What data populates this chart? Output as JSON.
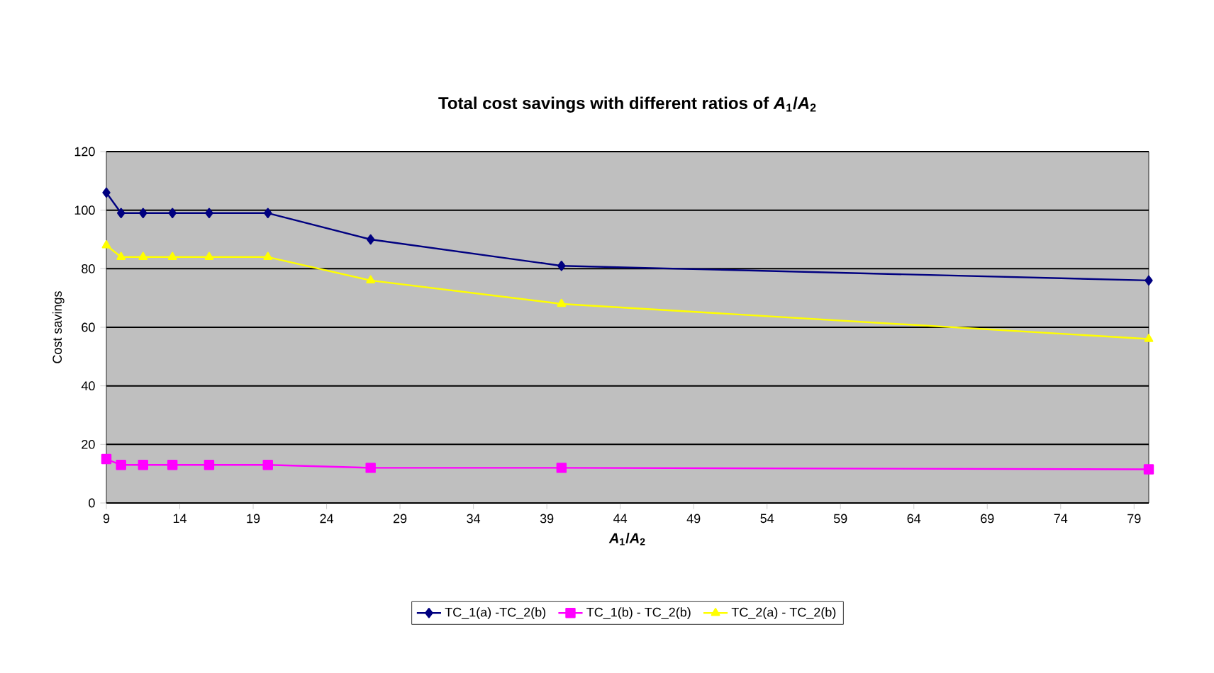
{
  "chart_data": {
    "type": "line",
    "title": "Total cost savings with different ratios of *A*$_{1}$/*A*$_{2}$",
    "xlabel": "*A*$_{1}$/*A*$_{2}$",
    "ylabel": "Cost savings",
    "x": [
      9,
      10,
      11.5,
      13.5,
      16,
      20,
      27,
      40,
      80
    ],
    "series": [
      {
        "name": "TC_1(a) -TC_2(b)",
        "color": "#000080",
        "marker": "diamond",
        "values": [
          106,
          99,
          99,
          99,
          99,
          99,
          90,
          81,
          76
        ]
      },
      {
        "name": "TC_1(b) - TC_2(b)",
        "color": "#ff00ff",
        "marker": "square",
        "values": [
          15,
          13,
          13,
          13,
          13,
          13,
          12,
          12,
          11.5
        ]
      },
      {
        "name": "TC_2(a) - TC_2(b)",
        "color": "#ffff00",
        "marker": "triangle",
        "values": [
          88,
          84,
          84,
          84,
          84,
          84,
          76,
          68,
          56
        ]
      }
    ],
    "xlim": [
      9,
      80
    ],
    "xticks": [
      9,
      14,
      19,
      24,
      29,
      34,
      39,
      44,
      49,
      54,
      59,
      64,
      69,
      74,
      79
    ],
    "ylim": [
      0,
      120
    ],
    "yticks": [
      0,
      20,
      40,
      60,
      80,
      100,
      120
    ],
    "grid": "y",
    "legend": "bottom",
    "line_style": "solid"
  }
}
